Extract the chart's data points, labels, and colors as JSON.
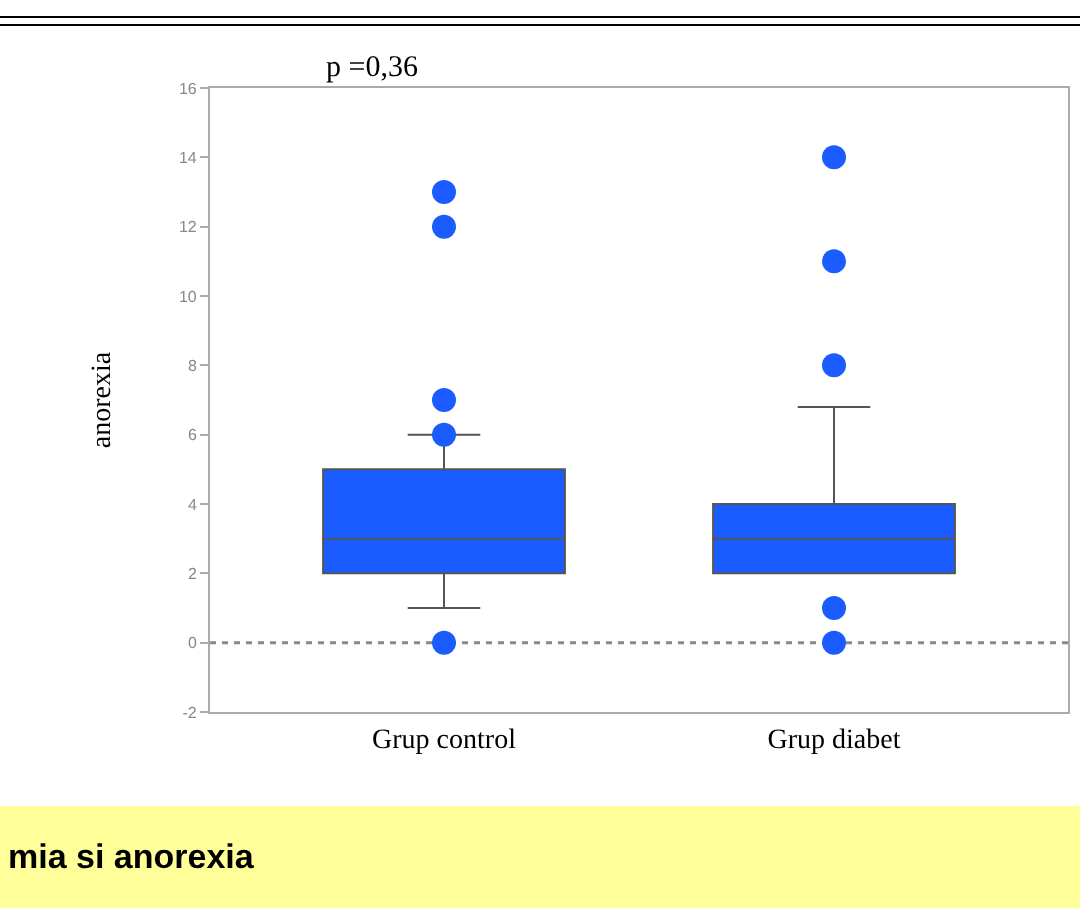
{
  "chart_data": {
    "type": "box",
    "title": "p =0,36",
    "ylabel": "anorexia",
    "categories": [
      "Grup control",
      "Grup diabet"
    ],
    "color": "#1a5cff",
    "boxes": [
      {
        "low": 1,
        "q1": 2,
        "median": 3,
        "q3": 5,
        "high": 6,
        "outliers": [
          0,
          6,
          7,
          12,
          13
        ]
      },
      {
        "low": 2,
        "q1": 2,
        "median": 3,
        "q3": 4,
        "high": 6.8,
        "outliers": [
          0,
          1,
          8,
          11,
          14
        ]
      }
    ],
    "ylim": [
      -2,
      16
    ],
    "yticks": [
      -2,
      0,
      2,
      4,
      6,
      8,
      10,
      12,
      14,
      16
    ],
    "grid": false,
    "ref_lines": [
      {
        "axis": "y",
        "value": 0,
        "line_style": "dotted",
        "color": "#888888"
      }
    ],
    "annotations": [
      "mia si anorexia"
    ]
  }
}
